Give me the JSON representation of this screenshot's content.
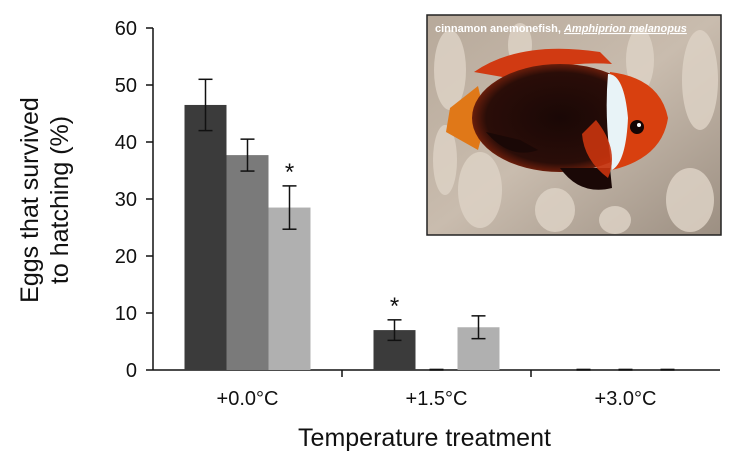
{
  "chart_data": {
    "type": "bar",
    "title": "",
    "xlabel": "Temperature treatment",
    "ylabel_line1": "Eggs that survived",
    "ylabel_line2": "to hatching (%)",
    "ylim": [
      0,
      60
    ],
    "yticks": [
      0,
      10,
      20,
      30,
      40,
      50,
      60
    ],
    "categories": [
      "+0.0°C",
      "+1.5°C",
      "+3.0°C"
    ],
    "series": [
      {
        "name": "series 1",
        "color": "#3b3b3b",
        "values": [
          46.5,
          7.0,
          0.0
        ],
        "errors": [
          4.5,
          1.8,
          0.1
        ]
      },
      {
        "name": "series 2",
        "color": "#7a7a7a",
        "values": [
          37.7,
          0.0,
          0.0
        ],
        "errors": [
          2.8,
          0.1,
          0.1
        ]
      },
      {
        "name": "series 3",
        "color": "#b0b0b0",
        "values": [
          28.5,
          7.5,
          0.0
        ],
        "errors": [
          3.8,
          2.0,
          0.1
        ]
      }
    ],
    "annotations": [
      {
        "text": "*",
        "category": 0,
        "series": 2
      },
      {
        "text": "*",
        "category": 1,
        "series": 0
      }
    ],
    "inset": {
      "caption_plain": "cinnamon anemonefish, ",
      "caption_italic": "Amphiprion melanopus",
      "subject": "anemone-fish-photo"
    }
  }
}
